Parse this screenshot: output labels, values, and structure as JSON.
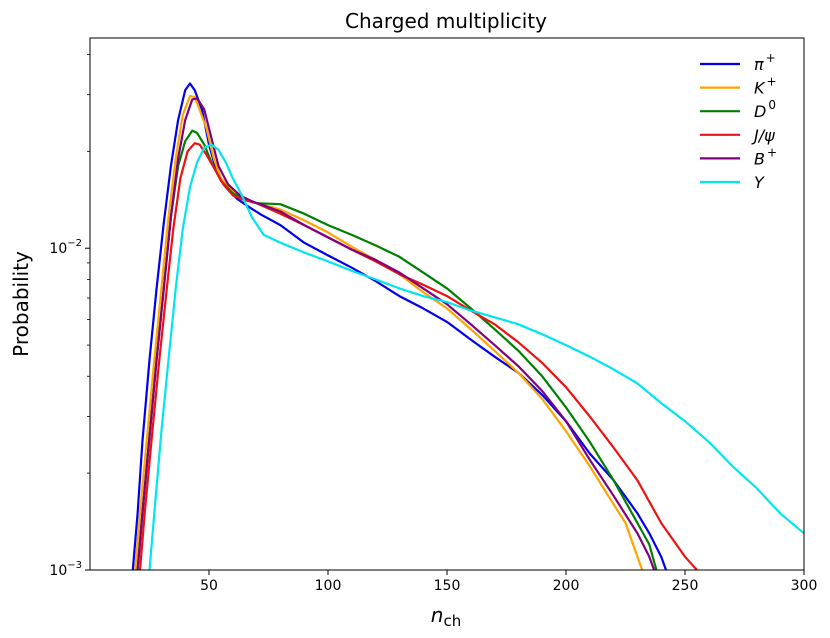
{
  "chart_data": {
    "type": "line",
    "title": "Charged multiplicity",
    "xlabel": "n_ch",
    "ylabel": "Probability",
    "xlim": [
      0,
      300
    ],
    "ylim": [
      0.001,
      0.045
    ],
    "yscale": "log",
    "grid": false,
    "legend_position": "top-right",
    "x_ticks": [
      50,
      100,
      150,
      200,
      250,
      300
    ],
    "y_ticks": [
      0.001,
      0.01
    ],
    "y_tick_labels": [
      "10^-3",
      "10^-2"
    ],
    "series": [
      {
        "name": "π+",
        "color": "#0000ee",
        "points": [
          [
            18,
            0.001
          ],
          [
            20,
            0.0015
          ],
          [
            22,
            0.0025
          ],
          [
            25,
            0.0045
          ],
          [
            28,
            0.0075
          ],
          [
            31,
            0.012
          ],
          [
            34,
            0.018
          ],
          [
            37,
            0.025
          ],
          [
            40,
            0.031
          ],
          [
            42,
            0.0325
          ],
          [
            44,
            0.031
          ],
          [
            47,
            0.027
          ],
          [
            50,
            0.021
          ],
          [
            53,
            0.0175
          ],
          [
            57,
            0.0155
          ],
          [
            62,
            0.0142
          ],
          [
            67,
            0.0134
          ],
          [
            72,
            0.0127
          ],
          [
            80,
            0.0118
          ],
          [
            90,
            0.0104
          ],
          [
            100,
            0.0095
          ],
          [
            110,
            0.0087
          ],
          [
            120,
            0.0079
          ],
          [
            130,
            0.0071
          ],
          [
            140,
            0.0065
          ],
          [
            150,
            0.0059
          ],
          [
            160,
            0.0052
          ],
          [
            170,
            0.0046
          ],
          [
            180,
            0.0041
          ],
          [
            190,
            0.0035
          ],
          [
            200,
            0.0029
          ],
          [
            210,
            0.0023
          ],
          [
            220,
            0.0019
          ],
          [
            230,
            0.0015
          ],
          [
            235,
            0.0013
          ],
          [
            240,
            0.0011
          ],
          [
            242,
            0.001
          ]
        ]
      },
      {
        "name": "K+",
        "color": "#ffa500",
        "points": [
          [
            19,
            0.001
          ],
          [
            21,
            0.0015
          ],
          [
            24,
            0.0026
          ],
          [
            27,
            0.0045
          ],
          [
            30,
            0.0075
          ],
          [
            33,
            0.0125
          ],
          [
            36,
            0.019
          ],
          [
            39,
            0.026
          ],
          [
            42,
            0.0297
          ],
          [
            44,
            0.0295
          ],
          [
            46,
            0.027
          ],
          [
            49,
            0.0235
          ],
          [
            52,
            0.019
          ],
          [
            55,
            0.0165
          ],
          [
            60,
            0.015
          ],
          [
            65,
            0.0142
          ],
          [
            70,
            0.0138
          ],
          [
            80,
            0.0132
          ],
          [
            90,
            0.0122
          ],
          [
            100,
            0.0112
          ],
          [
            110,
            0.0101
          ],
          [
            120,
            0.0092
          ],
          [
            130,
            0.0083
          ],
          [
            140,
            0.0073
          ],
          [
            150,
            0.0065
          ],
          [
            160,
            0.0056
          ],
          [
            170,
            0.0048
          ],
          [
            180,
            0.0041
          ],
          [
            190,
            0.0034
          ],
          [
            200,
            0.0027
          ],
          [
            210,
            0.0021
          ],
          [
            220,
            0.0016
          ],
          [
            225,
            0.0014
          ],
          [
            230,
            0.0011
          ],
          [
            232,
            0.001
          ]
        ]
      },
      {
        "name": "D0",
        "color": "#008000",
        "points": [
          [
            20,
            0.001
          ],
          [
            22,
            0.0015
          ],
          [
            25,
            0.0026
          ],
          [
            28,
            0.0045
          ],
          [
            31,
            0.0075
          ],
          [
            34,
            0.0125
          ],
          [
            37,
            0.018
          ],
          [
            40,
            0.0215
          ],
          [
            43,
            0.0232
          ],
          [
            45,
            0.0228
          ],
          [
            48,
            0.021
          ],
          [
            51,
            0.0185
          ],
          [
            55,
            0.0162
          ],
          [
            60,
            0.0148
          ],
          [
            65,
            0.0142
          ],
          [
            70,
            0.0138
          ],
          [
            80,
            0.0137
          ],
          [
            90,
            0.0128
          ],
          [
            100,
            0.0118
          ],
          [
            110,
            0.011
          ],
          [
            120,
            0.0102
          ],
          [
            130,
            0.0094
          ],
          [
            140,
            0.0084
          ],
          [
            150,
            0.0075
          ],
          [
            160,
            0.0065
          ],
          [
            170,
            0.0056
          ],
          [
            180,
            0.0048
          ],
          [
            190,
            0.004
          ],
          [
            200,
            0.0032
          ],
          [
            210,
            0.0025
          ],
          [
            220,
            0.0019
          ],
          [
            230,
            0.0014
          ],
          [
            235,
            0.0012
          ],
          [
            238,
            0.001
          ]
        ]
      },
      {
        "name": "J/ψ",
        "color": "#ee1111",
        "points": [
          [
            21,
            0.001
          ],
          [
            23,
            0.0015
          ],
          [
            26,
            0.0026
          ],
          [
            29,
            0.0044
          ],
          [
            32,
            0.0072
          ],
          [
            35,
            0.0115
          ],
          [
            38,
            0.0165
          ],
          [
            41,
            0.02
          ],
          [
            44,
            0.0212
          ],
          [
            46,
            0.021
          ],
          [
            49,
            0.0195
          ],
          [
            52,
            0.0178
          ],
          [
            56,
            0.0158
          ],
          [
            60,
            0.0146
          ],
          [
            65,
            0.0141
          ],
          [
            70,
            0.0138
          ],
          [
            80,
            0.0128
          ],
          [
            90,
            0.0118
          ],
          [
            100,
            0.0108
          ],
          [
            110,
            0.0099
          ],
          [
            120,
            0.0091
          ],
          [
            130,
            0.0083
          ],
          [
            140,
            0.0077
          ],
          [
            150,
            0.0071
          ],
          [
            160,
            0.0064
          ],
          [
            170,
            0.0058
          ],
          [
            180,
            0.0051
          ],
          [
            190,
            0.0044
          ],
          [
            200,
            0.0037
          ],
          [
            210,
            0.003
          ],
          [
            220,
            0.0024
          ],
          [
            230,
            0.0019
          ],
          [
            240,
            0.0014
          ],
          [
            250,
            0.0011
          ],
          [
            255,
            0.001
          ]
        ]
      },
      {
        "name": "B+",
        "color": "#800080",
        "points": [
          [
            20,
            0.001
          ],
          [
            22,
            0.0015
          ],
          [
            25,
            0.0026
          ],
          [
            28,
            0.0045
          ],
          [
            31,
            0.0075
          ],
          [
            34,
            0.0125
          ],
          [
            37,
            0.019
          ],
          [
            40,
            0.025
          ],
          [
            43,
            0.029
          ],
          [
            45,
            0.0292
          ],
          [
            48,
            0.027
          ],
          [
            51,
            0.022
          ],
          [
            54,
            0.018
          ],
          [
            58,
            0.0158
          ],
          [
            63,
            0.0146
          ],
          [
            68,
            0.014
          ],
          [
            74,
            0.0135
          ],
          [
            80,
            0.013
          ],
          [
            90,
            0.0118
          ],
          [
            100,
            0.0108
          ],
          [
            110,
            0.0099
          ],
          [
            120,
            0.0092
          ],
          [
            130,
            0.0084
          ],
          [
            140,
            0.0075
          ],
          [
            150,
            0.0067
          ],
          [
            160,
            0.0058
          ],
          [
            170,
            0.005
          ],
          [
            180,
            0.0043
          ],
          [
            190,
            0.0036
          ],
          [
            200,
            0.0029
          ],
          [
            210,
            0.0022
          ],
          [
            220,
            0.0017
          ],
          [
            230,
            0.0013
          ],
          [
            235,
            0.0011
          ],
          [
            237,
            0.001
          ]
        ]
      },
      {
        "name": "Υ",
        "color": "#00e5ee",
        "points": [
          [
            25,
            0.001
          ],
          [
            27,
            0.0015
          ],
          [
            30,
            0.0027
          ],
          [
            33,
            0.0045
          ],
          [
            36,
            0.0075
          ],
          [
            39,
            0.0115
          ],
          [
            42,
            0.0155
          ],
          [
            45,
            0.0185
          ],
          [
            48,
            0.0205
          ],
          [
            51,
            0.021
          ],
          [
            54,
            0.0202
          ],
          [
            57,
            0.0185
          ],
          [
            60,
            0.0165
          ],
          [
            64,
            0.0145
          ],
          [
            68,
            0.0125
          ],
          [
            73,
            0.011
          ],
          [
            80,
            0.0104
          ],
          [
            90,
            0.0097
          ],
          [
            100,
            0.0091
          ],
          [
            110,
            0.0085
          ],
          [
            120,
            0.008
          ],
          [
            130,
            0.0075
          ],
          [
            140,
            0.0071
          ],
          [
            150,
            0.0068
          ],
          [
            160,
            0.0064
          ],
          [
            170,
            0.0061
          ],
          [
            180,
            0.0058
          ],
          [
            190,
            0.0054
          ],
          [
            200,
            0.005
          ],
          [
            210,
            0.0046
          ],
          [
            220,
            0.0042
          ],
          [
            230,
            0.0038
          ],
          [
            240,
            0.0033
          ],
          [
            250,
            0.0029
          ],
          [
            260,
            0.0025
          ],
          [
            270,
            0.0021
          ],
          [
            280,
            0.0018
          ],
          [
            290,
            0.0015
          ],
          [
            300,
            0.0013
          ]
        ]
      }
    ]
  }
}
